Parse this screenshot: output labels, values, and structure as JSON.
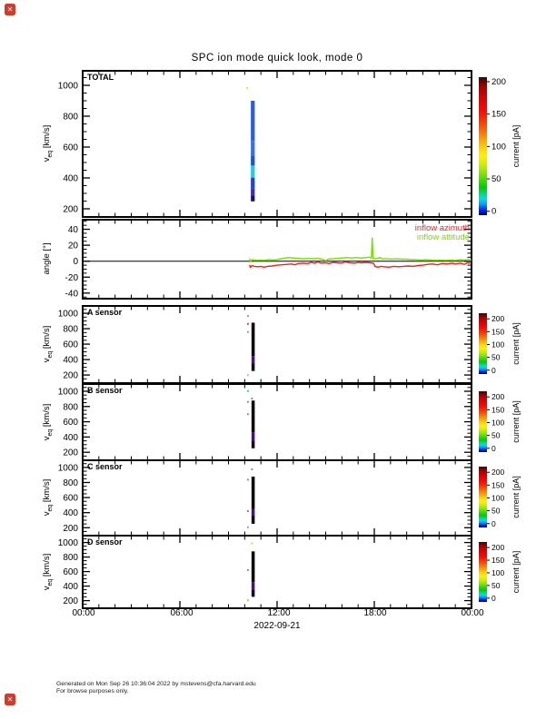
{
  "icons": {
    "broken_image": "✕"
  },
  "footer": {
    "line1": "Generated on Mon Sep 26 10:36:04 2022 by mstevens@cfa.harvard.edu",
    "line2": "For browse purposes only."
  },
  "chart_data": {
    "type": "multi-panel time series: heatmap spectrograms + line plot",
    "title": "SPC ion mode quick look, mode 0",
    "x_axis": {
      "tick_labels": [
        "00:00",
        "06:00",
        "12:00",
        "18:00",
        "00:00"
      ],
      "tick_hours": [
        0,
        6,
        12,
        18,
        24
      ],
      "minor_every_hours": 1,
      "range_hours": [
        0,
        24
      ],
      "date_label": "2022-09-21"
    },
    "colorbar": {
      "label": "current [pA]",
      "ticks": [
        200,
        150,
        100,
        50,
        0
      ],
      "gradient_stops": [
        [
          "0%",
          "#000060"
        ],
        [
          "4%",
          "#0028ff"
        ],
        [
          "8%",
          "#00a0ff"
        ],
        [
          "12%",
          "#00e0e0"
        ],
        [
          "16%",
          "#00d870"
        ],
        [
          "20%",
          "#00cc00"
        ],
        [
          "26%",
          "#44dd00"
        ],
        [
          "32%",
          "#99e800"
        ],
        [
          "38%",
          "#d8f000"
        ],
        [
          "43%",
          "#fff000"
        ],
        [
          "48%",
          "#ffd800"
        ],
        [
          "53%",
          "#ffb000"
        ],
        [
          "58%",
          "#ff8800"
        ],
        [
          "64%",
          "#ff5500"
        ],
        [
          "70%",
          "#ff2a00"
        ],
        [
          "76%",
          "#ff0800"
        ],
        [
          "82%",
          "#ee0000"
        ],
        [
          "88%",
          "#cc0000"
        ],
        [
          "93%",
          "#a80000"
        ],
        [
          "97%",
          "#700000"
        ],
        [
          "100%",
          "#181818"
        ]
      ]
    },
    "legend": [
      {
        "label": "inflow azimuth",
        "color": "#ee2222"
      },
      {
        "label": "inflow attitude",
        "color": "#77dd00"
      }
    ],
    "panels": [
      {
        "id": "total",
        "type": "heatmap",
        "label": "TOTAL",
        "ylabel_v": "v",
        "ylabel_sub": "eq",
        "ylabel_unit": " [km/s]",
        "yticks": [
          1000,
          800,
          600,
          400,
          200
        ],
        "ylim": [
          147,
          1094
        ],
        "streak": {
          "t": [
            10.38,
            10.62
          ],
          "segments": [
            {
              "v0": 900,
              "v1": 640,
              "color": "#2a5cea"
            },
            {
              "v0": 640,
              "v1": 545,
              "color": "#3570f2"
            },
            {
              "v0": 545,
              "v1": 480,
              "color": "#2050e0"
            },
            {
              "v0": 480,
              "v1": 402,
              "color": "#28c8e0"
            },
            {
              "v0": 402,
              "v1": 330,
              "color": "#2343d8"
            },
            {
              "v0": 330,
              "v1": 285,
              "color": "#3a30b8"
            },
            {
              "v0": 285,
              "v1": 248,
              "color": "#1c1080"
            }
          ],
          "dots": [
            {
              "t": 10.15,
              "v": 982,
              "color": "#e6e24e"
            }
          ]
        }
      },
      {
        "id": "angle",
        "type": "line",
        "ylabel": "angle [°]",
        "yticks": [
          40,
          20,
          0,
          -20,
          -40
        ],
        "ylim": [
          -47,
          52
        ],
        "zero_line": 0,
        "series": [
          {
            "name": "inflow azimuth",
            "color": "#ee2222",
            "points": [
              [
                10.3,
                -4.5
              ],
              [
                10.35,
                -8
              ],
              [
                10.45,
                -5.5
              ],
              [
                10.6,
                -6.5
              ],
              [
                10.8,
                -7
              ],
              [
                11.0,
                -6.5
              ],
              [
                11.2,
                -7.5
              ],
              [
                11.4,
                -6.5
              ],
              [
                11.7,
                -6
              ],
              [
                12.0,
                -5
              ],
              [
                12.3,
                -4.5
              ],
              [
                12.6,
                -4
              ],
              [
                12.9,
                -3.5
              ],
              [
                13.1,
                -4.5
              ],
              [
                13.3,
                -3
              ],
              [
                13.6,
                -2.5
              ],
              [
                13.9,
                -3
              ],
              [
                14.1,
                -1.5
              ],
              [
                14.3,
                -2.5
              ],
              [
                14.55,
                -1
              ],
              [
                14.7,
                -2.5
              ],
              [
                15.0,
                -2
              ],
              [
                15.2,
                -3
              ],
              [
                15.45,
                -1.5
              ],
              [
                15.7,
                -2
              ],
              [
                16.0,
                -2.5
              ],
              [
                16.2,
                -1
              ],
              [
                16.5,
                -2
              ],
              [
                16.8,
                -2.5
              ],
              [
                17.0,
                -1.5
              ],
              [
                17.2,
                -2
              ],
              [
                17.5,
                -1.5
              ],
              [
                17.75,
                -2
              ],
              [
                17.95,
                -2.5
              ],
              [
                18.05,
                -6.5
              ],
              [
                18.2,
                -7.5
              ],
              [
                18.4,
                -6.5
              ],
              [
                18.6,
                -7
              ],
              [
                18.9,
                -7.5
              ],
              [
                19.2,
                -6.5
              ],
              [
                19.5,
                -7
              ],
              [
                19.8,
                -6.5
              ],
              [
                20.1,
                -6
              ],
              [
                20.4,
                -6.5
              ],
              [
                20.7,
                -5.5
              ],
              [
                21.0,
                -5
              ],
              [
                21.3,
                -4
              ],
              [
                21.6,
                -3.5
              ],
              [
                21.9,
                -4.5
              ],
              [
                22.2,
                -3
              ],
              [
                22.5,
                -3.5
              ],
              [
                22.8,
                -2.5
              ],
              [
                23.0,
                -3.5
              ],
              [
                23.3,
                -2.5
              ],
              [
                23.55,
                -4
              ],
              [
                23.75,
                -2
              ],
              [
                24.0,
                -2.5
              ]
            ]
          },
          {
            "name": "inflow attitude",
            "color": "#77dd00",
            "points": [
              [
                10.3,
                3.5
              ],
              [
                10.35,
                -1
              ],
              [
                10.45,
                2
              ],
              [
                10.6,
                1.5
              ],
              [
                10.8,
                1
              ],
              [
                11.0,
                1.5
              ],
              [
                11.2,
                1
              ],
              [
                11.5,
                2
              ],
              [
                11.8,
                1.5
              ],
              [
                12.1,
                2.5
              ],
              [
                12.4,
                3.5
              ],
              [
                12.7,
                4.5
              ],
              [
                13.0,
                4
              ],
              [
                13.3,
                3.5
              ],
              [
                13.6,
                3
              ],
              [
                13.9,
                3.5
              ],
              [
                14.2,
                3
              ],
              [
                14.5,
                3.5
              ],
              [
                14.8,
                2.5
              ],
              [
                15.0,
                0.5
              ],
              [
                15.15,
                2.5
              ],
              [
                15.4,
                3
              ],
              [
                15.7,
                3.5
              ],
              [
                16.0,
                4
              ],
              [
                16.3,
                4.5
              ],
              [
                16.6,
                4
              ],
              [
                16.9,
                4.5
              ],
              [
                17.2,
                4
              ],
              [
                17.5,
                4.5
              ],
              [
                17.7,
                5
              ],
              [
                17.82,
                4
              ],
              [
                17.87,
                29
              ],
              [
                17.92,
                3.5
              ],
              [
                18.1,
                3
              ],
              [
                18.35,
                4.5
              ],
              [
                18.5,
                3
              ],
              [
                18.8,
                3
              ],
              [
                19.1,
                2.5
              ],
              [
                19.4,
                3
              ],
              [
                19.7,
                2.5
              ],
              [
                20.0,
                2.5
              ],
              [
                20.3,
                2
              ],
              [
                20.6,
                2
              ],
              [
                20.9,
                1.5
              ],
              [
                21.2,
                2
              ],
              [
                21.5,
                1.5
              ],
              [
                21.8,
                1
              ],
              [
                22.1,
                1.5
              ],
              [
                22.4,
                1
              ],
              [
                22.7,
                1.5
              ],
              [
                23.0,
                1
              ],
              [
                23.3,
                2
              ],
              [
                23.6,
                1.5
              ],
              [
                23.8,
                2.5
              ],
              [
                24.0,
                1.5
              ]
            ]
          }
        ]
      },
      {
        "id": "a",
        "type": "heatmap",
        "label": "A sensor",
        "ylabel_v": "v",
        "ylabel_sub": "eq",
        "ylabel_unit": " [km/s]",
        "yticks": [
          1000,
          800,
          600,
          400,
          200
        ],
        "ylim": [
          95,
          1095
        ],
        "streak": {
          "t": [
            10.42,
            10.62
          ],
          "segments": [
            {
              "v0": 878,
              "v1": 445,
              "color": "#0a0508"
            },
            {
              "v0": 445,
              "v1": 352,
              "color": "#471288"
            },
            {
              "v0": 352,
              "v1": 252,
              "color": "#150a20"
            }
          ],
          "dots": [
            {
              "t": 10.2,
              "v": 965,
              "color": "#9a9a9a"
            },
            {
              "t": 10.2,
              "v": 862,
              "color": "#c05050"
            },
            {
              "t": 10.2,
              "v": 757,
              "color": "#9a9a9a"
            },
            {
              "t": 10.2,
              "v": 198,
              "color": "#a8c890"
            }
          ]
        }
      },
      {
        "id": "b",
        "type": "heatmap",
        "label": "B sensor",
        "ylabel_v": "v",
        "ylabel_sub": "eq",
        "ylabel_unit": " [km/s]",
        "yticks": [
          1000,
          800,
          600,
          400,
          200
        ],
        "ylim": [
          95,
          1095
        ],
        "streak": {
          "t": [
            10.42,
            10.62
          ],
          "segments": [
            {
              "v0": 878,
              "v1": 460,
              "color": "#0a0508"
            },
            {
              "v0": 460,
              "v1": 345,
              "color": "#3f1090"
            },
            {
              "v0": 345,
              "v1": 252,
              "color": "#150a20"
            }
          ],
          "dots": [
            {
              "t": 10.2,
              "v": 1002,
              "color": "#50b8e8"
            },
            {
              "t": 10.45,
              "v": 905,
              "color": "#909090"
            },
            {
              "t": 10.2,
              "v": 860,
              "color": "#909090"
            },
            {
              "t": 10.2,
              "v": 700,
              "color": "#909090"
            }
          ]
        }
      },
      {
        "id": "c",
        "type": "heatmap",
        "label": "C sensor",
        "ylabel_v": "v",
        "ylabel_sub": "eq",
        "ylabel_unit": " [km/s]",
        "yticks": [
          1000,
          800,
          600,
          400,
          200
        ],
        "ylim": [
          95,
          1095
        ],
        "streak": {
          "t": [
            10.42,
            10.62
          ],
          "segments": [
            {
              "v0": 878,
              "v1": 450,
              "color": "#0a0508"
            },
            {
              "v0": 450,
              "v1": 360,
              "color": "#47128f"
            },
            {
              "v0": 360,
              "v1": 252,
              "color": "#150a20"
            }
          ],
          "dots": [
            {
              "t": 10.45,
              "v": 975,
              "color": "#909090"
            },
            {
              "t": 10.2,
              "v": 838,
              "color": "#909090"
            },
            {
              "t": 10.2,
              "v": 420,
              "color": "#808080"
            },
            {
              "t": 10.2,
              "v": 205,
              "color": "#c09090"
            }
          ]
        }
      },
      {
        "id": "d",
        "type": "heatmap",
        "label": "D sensor",
        "ylabel_v": "v",
        "ylabel_sub": "eq",
        "ylabel_unit": " [km/s]",
        "yticks": [
          1000,
          800,
          600,
          400,
          200
        ],
        "ylim": [
          95,
          1095
        ],
        "streak": {
          "t": [
            10.42,
            10.62
          ],
          "segments": [
            {
              "v0": 878,
              "v1": 455,
              "color": "#0a0508"
            },
            {
              "v0": 455,
              "v1": 350,
              "color": "#441285"
            },
            {
              "v0": 350,
              "v1": 252,
              "color": "#150a20"
            }
          ],
          "dots": [
            {
              "t": 10.45,
              "v": 988,
              "color": "#d8d84a"
            },
            {
              "t": 10.2,
              "v": 620,
              "color": "#909090"
            },
            {
              "t": 10.2,
              "v": 205,
              "color": "#9cc850"
            }
          ]
        }
      }
    ]
  }
}
